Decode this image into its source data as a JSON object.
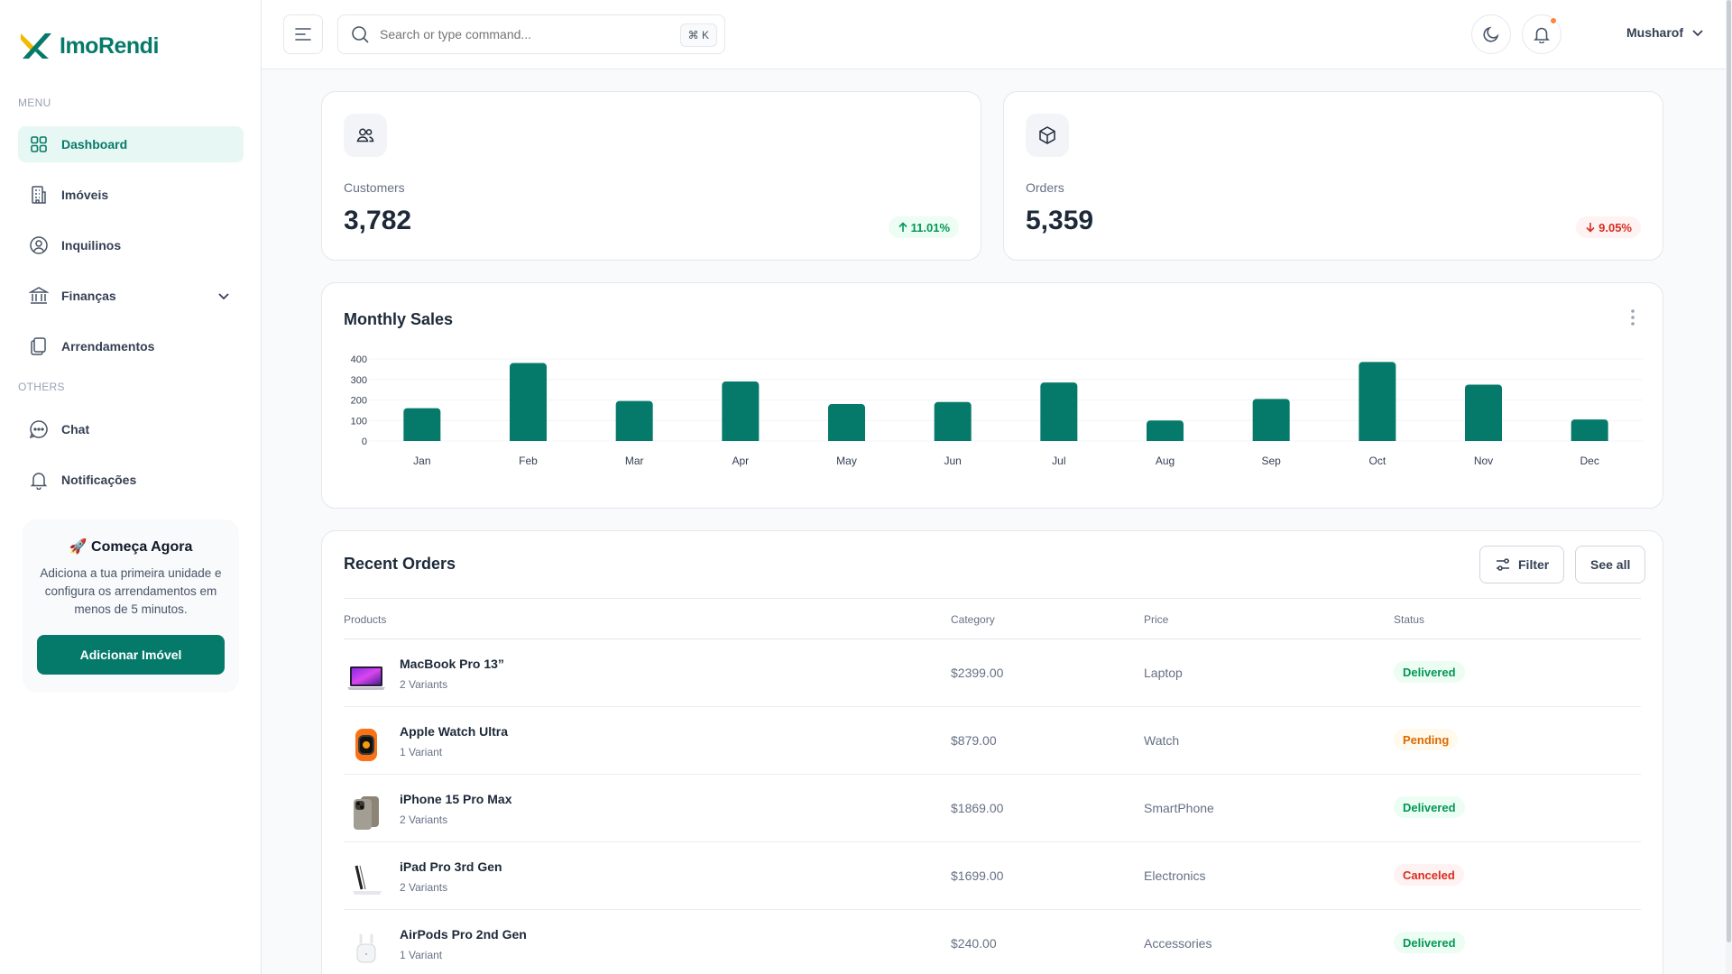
{
  "brand": {
    "name": "ImoRendi",
    "primary": "#067a6a",
    "accent": "#f5b800"
  },
  "sidebar": {
    "menu_heading": "MENU",
    "others_heading": "OTHERS",
    "items": [
      {
        "label": "Dashboard",
        "icon": "grid-icon"
      },
      {
        "label": "Imóveis",
        "icon": "building-icon"
      },
      {
        "label": "Inquilinos",
        "icon": "user-circle-icon"
      },
      {
        "label": "Finanças",
        "icon": "bank-icon"
      },
      {
        "label": "Arrendamentos",
        "icon": "documents-icon"
      }
    ],
    "others": [
      {
        "label": "Chat",
        "icon": "chat-icon"
      },
      {
        "label": "Notificações",
        "icon": "bell-icon"
      }
    ],
    "promo": {
      "title": "🚀 Começa Agora",
      "text": "Adiciona a tua primeira unidade e configura os arrendamentos em menos de 5 minutos.",
      "button": "Adicionar Imóvel"
    }
  },
  "header": {
    "search_placeholder": "Search or type command...",
    "shortcut": "⌘ K",
    "user_name": "Musharof"
  },
  "metrics": [
    {
      "label": "Customers",
      "value": "3,782",
      "change": "11.01%",
      "direction": "up"
    },
    {
      "label": "Orders",
      "value": "5,359",
      "change": "9.05%",
      "direction": "down"
    }
  ],
  "chart_data": {
    "type": "bar",
    "title": "Monthly Sales",
    "categories": [
      "Jan",
      "Feb",
      "Mar",
      "Apr",
      "May",
      "Jun",
      "Jul",
      "Aug",
      "Sep",
      "Oct",
      "Nov",
      "Dec"
    ],
    "values": [
      160,
      380,
      195,
      290,
      180,
      190,
      285,
      100,
      205,
      385,
      275,
      105
    ],
    "yticks": [
      "0",
      "100",
      "200",
      "300",
      "400"
    ],
    "ylim": [
      0,
      400
    ],
    "color": "#067a6a",
    "grid": true
  },
  "orders": {
    "title": "Recent Orders",
    "filter_label": "Filter",
    "see_all_label": "See all",
    "columns": [
      "Products",
      "Category",
      "Price",
      "Status"
    ],
    "rows": [
      {
        "name": "MacBook Pro 13”",
        "variants": "2 Variants",
        "price": "$2399.00",
        "category": "Laptop",
        "status": "Delivered"
      },
      {
        "name": "Apple Watch Ultra",
        "variants": "1 Variant",
        "price": "$879.00",
        "category": "Watch",
        "status": "Pending"
      },
      {
        "name": "iPhone 15 Pro Max",
        "variants": "2 Variants",
        "price": "$1869.00",
        "category": "SmartPhone",
        "status": "Delivered"
      },
      {
        "name": "iPad Pro 3rd Gen",
        "variants": "2 Variants",
        "price": "$1699.00",
        "category": "Electronics",
        "status": "Canceled"
      },
      {
        "name": "AirPods Pro 2nd Gen",
        "variants": "1 Variant",
        "price": "$240.00",
        "category": "Accessories",
        "status": "Delivered"
      }
    ]
  }
}
